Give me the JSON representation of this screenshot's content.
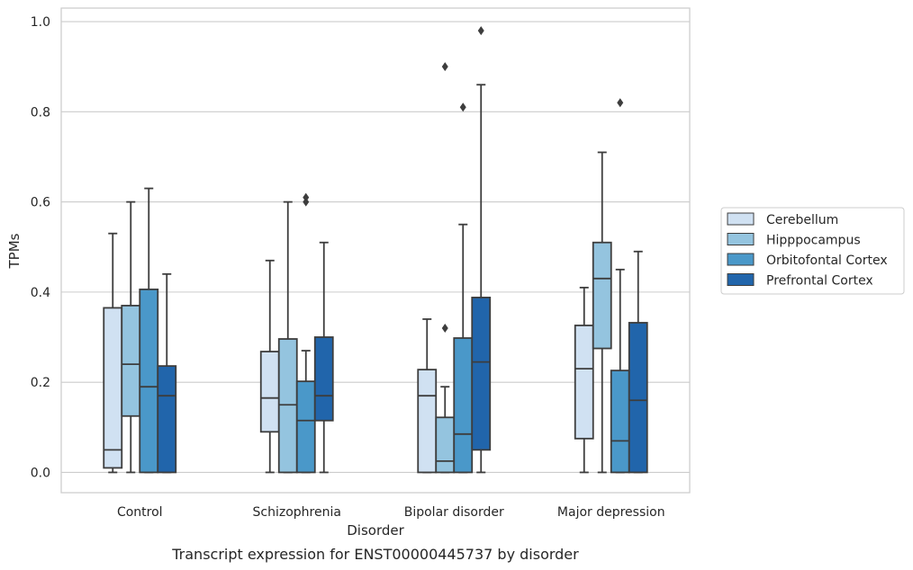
{
  "chart_data": {
    "type": "box",
    "caption": "Transcript expression for ENST00000445737 by disorder",
    "xlabel": "Disorder",
    "ylabel": "TPMs",
    "ylim": [
      -0.045,
      1.03
    ],
    "yticks": [
      "0.0",
      "0.2",
      "0.4",
      "0.6",
      "0.8",
      "1.0"
    ],
    "grid": true,
    "legend_position": "right",
    "categories": [
      "Control",
      "Schizophrenia",
      "Bipolar disorder",
      "Major depression"
    ],
    "series": [
      {
        "name": "Cerebellum",
        "color": "#d0e1f2",
        "boxes": [
          {
            "whisker_low": 0.0,
            "q1": 0.01,
            "median": 0.05,
            "q3": 0.365,
            "whisker_high": 0.53,
            "outliers": []
          },
          {
            "whisker_low": 0.0,
            "q1": 0.09,
            "median": 0.165,
            "q3": 0.268,
            "whisker_high": 0.47,
            "outliers": []
          },
          {
            "whisker_low": 0.0,
            "q1": 0.0,
            "median": 0.17,
            "q3": 0.228,
            "whisker_high": 0.34,
            "outliers": []
          },
          {
            "whisker_low": 0.0,
            "q1": 0.075,
            "median": 0.23,
            "q3": 0.326,
            "whisker_high": 0.41,
            "outliers": []
          }
        ]
      },
      {
        "name": "Hipppocampus",
        "color": "#94c4df",
        "boxes": [
          {
            "whisker_low": 0.0,
            "q1": 0.125,
            "median": 0.24,
            "q3": 0.37,
            "whisker_high": 0.6,
            "outliers": []
          },
          {
            "whisker_low": 0.0,
            "q1": 0.0,
            "median": 0.15,
            "q3": 0.296,
            "whisker_high": 0.6,
            "outliers": []
          },
          {
            "whisker_low": 0.0,
            "q1": 0.0,
            "median": 0.025,
            "q3": 0.122,
            "whisker_high": 0.19,
            "outliers": [
              0.32,
              0.9
            ]
          },
          {
            "whisker_low": 0.0,
            "q1": 0.275,
            "median": 0.43,
            "q3": 0.51,
            "whisker_high": 0.71,
            "outliers": []
          }
        ]
      },
      {
        "name": "Orbitofontal Cortex",
        "color": "#4a98c9",
        "boxes": [
          {
            "whisker_low": 0.0,
            "q1": 0.0,
            "median": 0.19,
            "q3": 0.406,
            "whisker_high": 0.63,
            "outliers": []
          },
          {
            "whisker_low": 0.0,
            "q1": 0.0,
            "median": 0.115,
            "q3": 0.202,
            "whisker_high": 0.27,
            "outliers": [
              0.6,
              0.61
            ]
          },
          {
            "whisker_low": 0.0,
            "q1": 0.0,
            "median": 0.085,
            "q3": 0.298,
            "whisker_high": 0.55,
            "outliers": [
              0.81
            ]
          },
          {
            "whisker_low": 0.0,
            "q1": 0.0,
            "median": 0.07,
            "q3": 0.226,
            "whisker_high": 0.45,
            "outliers": [
              0.82
            ]
          }
        ]
      },
      {
        "name": "Prefrontal Cortex",
        "color": "#2165ab",
        "boxes": [
          {
            "whisker_low": 0.0,
            "q1": 0.0,
            "median": 0.17,
            "q3": 0.236,
            "whisker_high": 0.44,
            "outliers": []
          },
          {
            "whisker_low": 0.0,
            "q1": 0.115,
            "median": 0.17,
            "q3": 0.3,
            "whisker_high": 0.51,
            "outliers": []
          },
          {
            "whisker_low": 0.0,
            "q1": 0.05,
            "median": 0.245,
            "q3": 0.388,
            "whisker_high": 0.86,
            "outliers": [
              0.98
            ]
          },
          {
            "whisker_low": 0.0,
            "q1": 0.0,
            "median": 0.16,
            "q3": 0.332,
            "whisker_high": 0.49,
            "outliers": []
          }
        ]
      }
    ]
  }
}
